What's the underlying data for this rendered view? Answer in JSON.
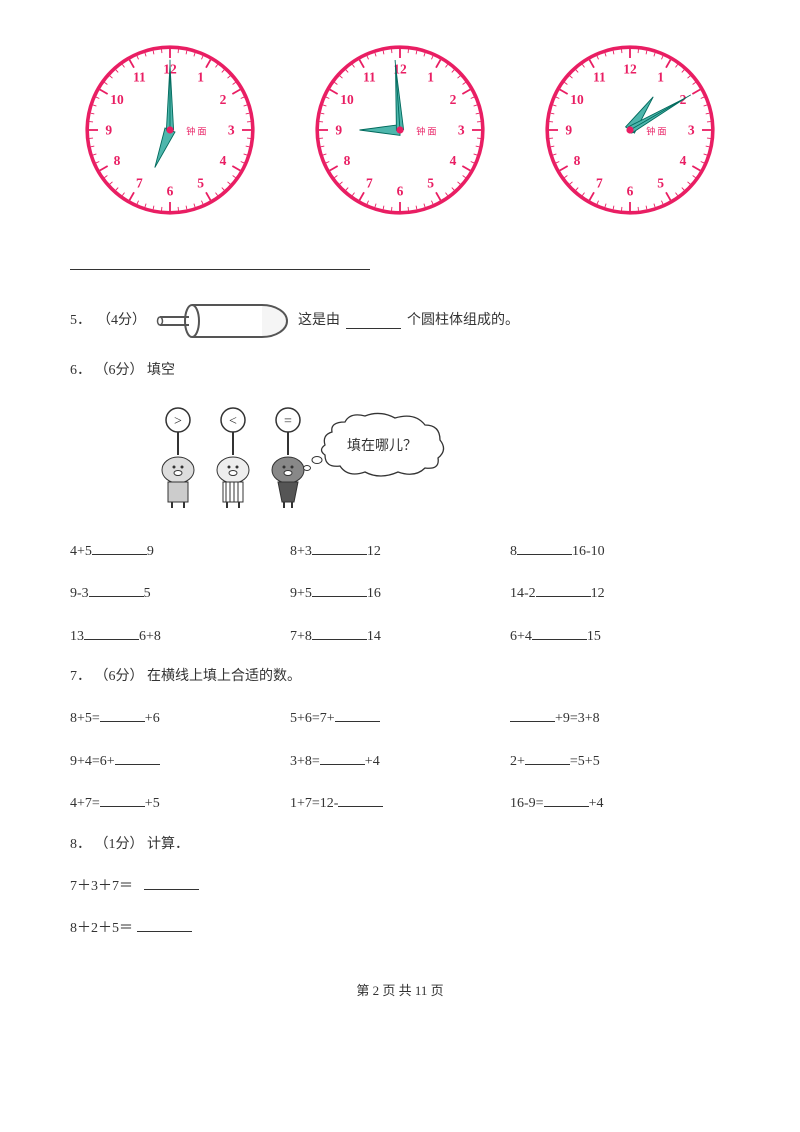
{
  "clocks": [
    {
      "hour_angle": 202,
      "min_angle": 0,
      "sec_angle": 0
    },
    {
      "hour_angle": 270,
      "min_angle": 356,
      "sec_angle": 356
    },
    {
      "hour_angle": 35,
      "min_angle": 60,
      "sec_angle": 60
    }
  ],
  "clock_style": {
    "rim_color": "#e91e63",
    "rim_width": 4,
    "face_color": "#ffffff",
    "tick_color": "#e91e63",
    "number_color": "#e91e63",
    "number_fontsize": 15,
    "center_color": "#e91e63",
    "hand_fill": "#4db6ac",
    "hand_stroke": "#00695c",
    "label_text": "钟 面",
    "label_color": "#e91e63",
    "label_fontsize": 10
  },
  "q5": {
    "num": "5．",
    "points": "（4分）",
    "tail1": "这是由",
    "tail2": "个圆柱体组成的。"
  },
  "q6": {
    "num": "6．",
    "points": "（6分）",
    "title": "填空",
    "bubble": "填在哪儿？",
    "rows": [
      {
        "a": "4+5",
        "b": "9",
        "c": "8+3",
        "d": "12",
        "e": "8",
        "f": "16-10"
      },
      {
        "a": "9-3",
        "b": "5",
        "c": "9+5",
        "d": "16",
        "e": "14-2",
        "f": "12"
      },
      {
        "a": "13",
        "b": "6+8",
        "c": "7+8",
        "d": "14",
        "e": "6+4",
        "f": "15"
      }
    ]
  },
  "q7": {
    "num": "7．",
    "points": "（6分）",
    "title": "在横线上填上合适的数。",
    "rows": [
      {
        "a1": "8+5=",
        "a2": "+6",
        "b1": "5+6=7+",
        "b2": "",
        "c1": "",
        "c2": "+9=3+8"
      },
      {
        "a1": "9+4=6+",
        "a2": "",
        "b1": "3+8=",
        "b2": "+4",
        "c1": "2+",
        "c2": "=5+5"
      },
      {
        "a1": "4+7=",
        "a2": "+5",
        "b1": "1+7=12-",
        "b2": "",
        "c1": "16-9=",
        "c2": "+4"
      }
    ]
  },
  "q8": {
    "num": "8．",
    "points": "（1分）",
    "title": "计算．",
    "lines": [
      "7＋3＋7＝",
      "8＋2＋5＝"
    ]
  },
  "pig_signs": [
    ">",
    "<",
    "="
  ],
  "footer": {
    "pre": "第 ",
    "cur": "2",
    "mid": " 页 共 ",
    "total": "11",
    "post": " 页"
  }
}
